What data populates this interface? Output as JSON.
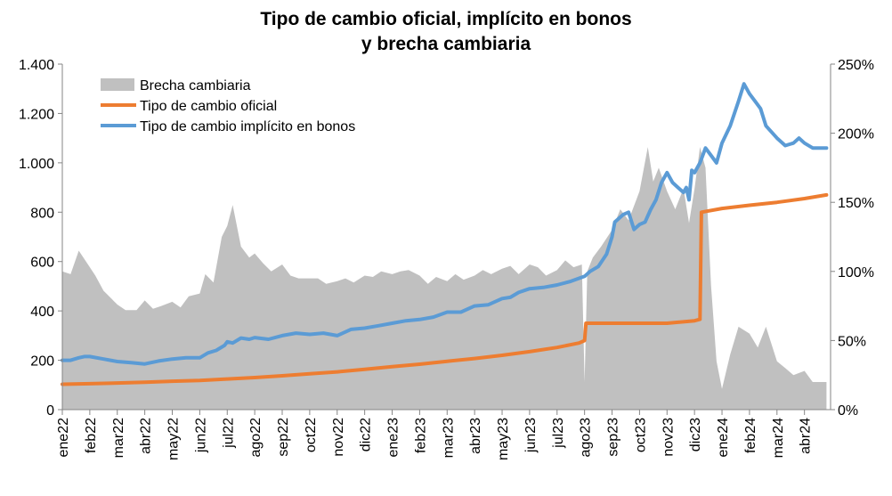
{
  "chart_data": {
    "type": "line",
    "title_line1": "Tipo de cambio oficial, implícito en bonos",
    "title_line2": "y brecha cambiaria",
    "x_categories": [
      "ene22",
      "feb22",
      "mar22",
      "abr22",
      "may22",
      "jun22",
      "jul22",
      "ago22",
      "sep22",
      "oct22",
      "nov22",
      "dic22",
      "ene23",
      "feb23",
      "mar23",
      "abr23",
      "may23",
      "jun23",
      "jul23",
      "ago23",
      "sep23",
      "oct23",
      "nov23",
      "dic23",
      "ene24",
      "feb24",
      "mar24",
      "abr24"
    ],
    "y_left": {
      "ylim": [
        0,
        1400
      ],
      "ticks": [
        0,
        200,
        400,
        600,
        800,
        1000,
        1200,
        1400
      ],
      "tick_labels": [
        "0",
        "200",
        "400",
        "600",
        "800",
        "1.000",
        "1.200",
        "1.400"
      ]
    },
    "y_right": {
      "ylim": [
        0,
        250
      ],
      "ticks": [
        0,
        50,
        100,
        150,
        200,
        250
      ],
      "tick_labels": [
        "0%",
        "50%",
        "100%",
        "150%",
        "200%",
        "250%"
      ]
    },
    "legend": {
      "placement": "top-left",
      "entries": [
        "Brecha cambiaria",
        "Tipo de cambio oficial",
        "Tipo de cambio implícito en bonos"
      ]
    },
    "series": [
      {
        "name": "Brecha cambiaria",
        "kind": "area",
        "axis": "right",
        "color": "#c0c0c0",
        "x": [
          0,
          0.3,
          0.6,
          1.0,
          1.2,
          1.5,
          1.8,
          2.0,
          2.3,
          2.7,
          3.0,
          3.3,
          3.6,
          4.0,
          4.3,
          4.6,
          5.0,
          5.2,
          5.5,
          5.8,
          6.0,
          6.2,
          6.5,
          6.8,
          7.0,
          7.3,
          7.6,
          8.0,
          8.3,
          8.6,
          9.0,
          9.3,
          9.6,
          10.0,
          10.3,
          10.6,
          11.0,
          11.3,
          11.6,
          12.0,
          12.3,
          12.6,
          13.0,
          13.3,
          13.6,
          14.0,
          14.3,
          14.6,
          15.0,
          15.3,
          15.6,
          16.0,
          16.3,
          16.6,
          17.0,
          17.3,
          17.6,
          18.0,
          18.3,
          18.6,
          18.9,
          19.0,
          19.1,
          19.3,
          19.6,
          20.0,
          20.3,
          20.6,
          21.0,
          21.3,
          21.5,
          21.7,
          22.0,
          22.3,
          22.6,
          22.8,
          23.0,
          23.2,
          23.4,
          23.6,
          23.8,
          24.0,
          24.3,
          24.6,
          25.0,
          25.3,
          25.6,
          26.0,
          26.3,
          26.6,
          27.0,
          27.3,
          27.8
        ],
        "values": [
          100,
          98,
          115,
          103,
          97,
          86,
          80,
          76,
          72,
          72,
          79,
          73,
          75,
          78,
          74,
          82,
          84,
          98,
          92,
          125,
          133,
          148,
          118,
          110,
          113,
          106,
          100,
          105,
          97,
          95,
          95,
          95,
          91,
          93,
          95,
          92,
          97,
          96,
          100,
          98,
          100,
          101,
          97,
          91,
          96,
          93,
          98,
          94,
          97,
          101,
          98,
          102,
          104,
          98,
          105,
          103,
          97,
          101,
          108,
          103,
          105,
          20,
          100,
          110,
          118,
          130,
          145,
          137,
          158,
          190,
          165,
          175,
          158,
          145,
          160,
          135,
          160,
          190,
          175,
          90,
          35,
          15,
          40,
          60,
          55,
          45,
          60,
          35,
          30,
          25,
          28,
          20,
          20
        ]
      },
      {
        "name": "Tipo de cambio oficial",
        "kind": "line",
        "axis": "left",
        "color": "#ed7d31",
        "x": [
          0,
          1,
          2,
          3,
          4,
          5,
          6,
          7,
          8,
          9,
          10,
          11,
          12,
          13,
          14,
          15,
          16,
          17,
          18,
          18.8,
          19.0,
          19.05,
          20,
          21,
          22,
          23.0,
          23.2,
          23.25,
          24,
          25,
          26,
          27,
          27.8
        ],
        "values": [
          103,
          105,
          108,
          111,
          115,
          118,
          124,
          130,
          137,
          145,
          153,
          163,
          174,
          184,
          196,
          207,
          220,
          235,
          252,
          270,
          280,
          350,
          350,
          350,
          350,
          360,
          366,
          800,
          815,
          828,
          840,
          855,
          870
        ]
      },
      {
        "name": "Tipo de cambio implícito en bonos",
        "kind": "line",
        "axis": "left",
        "color": "#5b9bd5",
        "x": [
          0,
          0.3,
          0.6,
          0.8,
          1.0,
          1.5,
          2.0,
          2.5,
          3.0,
          3.5,
          4.0,
          4.5,
          5.0,
          5.3,
          5.6,
          5.9,
          6.0,
          6.2,
          6.5,
          6.8,
          7.0,
          7.5,
          8.0,
          8.5,
          9.0,
          9.5,
          10.0,
          10.5,
          11.0,
          11.5,
          12.0,
          12.5,
          13.0,
          13.5,
          14.0,
          14.5,
          15.0,
          15.5,
          16.0,
          16.3,
          16.6,
          17.0,
          17.5,
          18.0,
          18.5,
          19.0,
          19.2,
          19.5,
          19.8,
          20.0,
          20.1,
          20.4,
          20.6,
          20.8,
          21.0,
          21.2,
          21.4,
          21.6,
          21.8,
          22.0,
          22.2,
          22.4,
          22.6,
          22.7,
          22.8,
          22.9,
          23.0,
          23.2,
          23.4,
          23.6,
          23.8,
          24.0,
          24.3,
          24.6,
          24.8,
          25.0,
          25.2,
          25.4,
          25.6,
          26.0,
          26.3,
          26.6,
          26.8,
          27.0,
          27.3,
          27.8
        ],
        "values": [
          200,
          200,
          210,
          215,
          215,
          205,
          195,
          190,
          185,
          197,
          205,
          210,
          210,
          230,
          240,
          260,
          275,
          270,
          290,
          285,
          292,
          285,
          300,
          310,
          305,
          310,
          300,
          325,
          330,
          340,
          350,
          360,
          365,
          375,
          395,
          395,
          420,
          425,
          450,
          455,
          475,
          490,
          495,
          505,
          520,
          540,
          560,
          580,
          630,
          700,
          760,
          790,
          800,
          730,
          750,
          760,
          810,
          850,
          920,
          960,
          920,
          900,
          880,
          900,
          850,
          970,
          960,
          1000,
          1060,
          1030,
          1000,
          1080,
          1150,
          1250,
          1320,
          1280,
          1250,
          1220,
          1150,
          1100,
          1070,
          1080,
          1100,
          1080,
          1060,
          1060
        ]
      }
    ]
  }
}
